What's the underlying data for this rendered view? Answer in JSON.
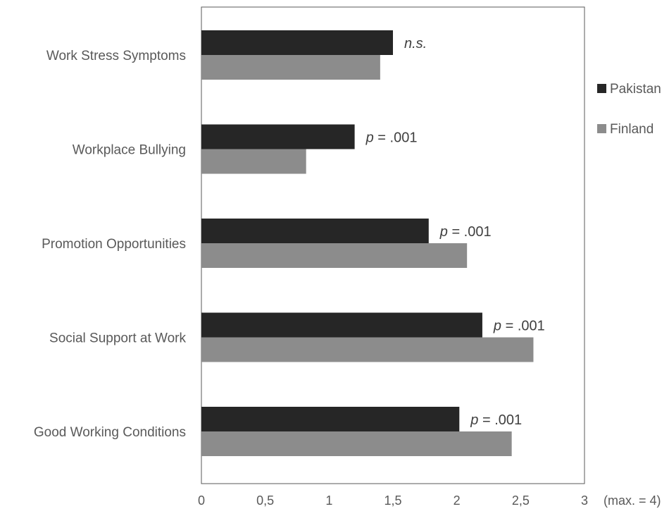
{
  "chart_data": {
    "type": "bar",
    "orientation": "horizontal",
    "categories": [
      "Work Stress Symptoms",
      "Workplace Bullying",
      "Promotion Opportunities",
      "Social Support at Work",
      "Good Working Conditions"
    ],
    "series": [
      {
        "name": "Pakistan",
        "color": "#262626",
        "values": [
          1.5,
          1.2,
          1.78,
          2.2,
          2.02
        ]
      },
      {
        "name": "Finland",
        "color": "#8c8c8c",
        "values": [
          1.4,
          0.82,
          2.08,
          2.6,
          2.43
        ]
      }
    ],
    "annotations": [
      {
        "category": "Work Stress Symptoms",
        "parts": [
          {
            "text": "n.s.",
            "italic": true
          }
        ]
      },
      {
        "category": "Workplace Bullying",
        "parts": [
          {
            "text": "p",
            "italic": true
          },
          {
            "text": " = .001",
            "italic": false
          }
        ]
      },
      {
        "category": "Promotion Opportunities",
        "parts": [
          {
            "text": "p",
            "italic": true
          },
          {
            "text": " = .001",
            "italic": false
          }
        ]
      },
      {
        "category": "Social Support at Work",
        "parts": [
          {
            "text": "p",
            "italic": true
          },
          {
            "text": " = .001",
            "italic": false
          }
        ]
      },
      {
        "category": "Good Working Conditions",
        "parts": [
          {
            "text": "p",
            "italic": true
          },
          {
            "text": " = .001",
            "italic": false
          }
        ]
      }
    ],
    "xlim": [
      0,
      3
    ],
    "xticks": [
      0,
      0.5,
      1,
      1.5,
      2,
      2.5,
      3
    ],
    "xtick_labels": [
      "0",
      "0,5",
      "1",
      "1,5",
      "2",
      "2,5",
      "3"
    ],
    "x_max_note": "(max. = 4)",
    "title": "",
    "xlabel": "",
    "ylabel": "",
    "grid": false,
    "legend_position": "right"
  }
}
